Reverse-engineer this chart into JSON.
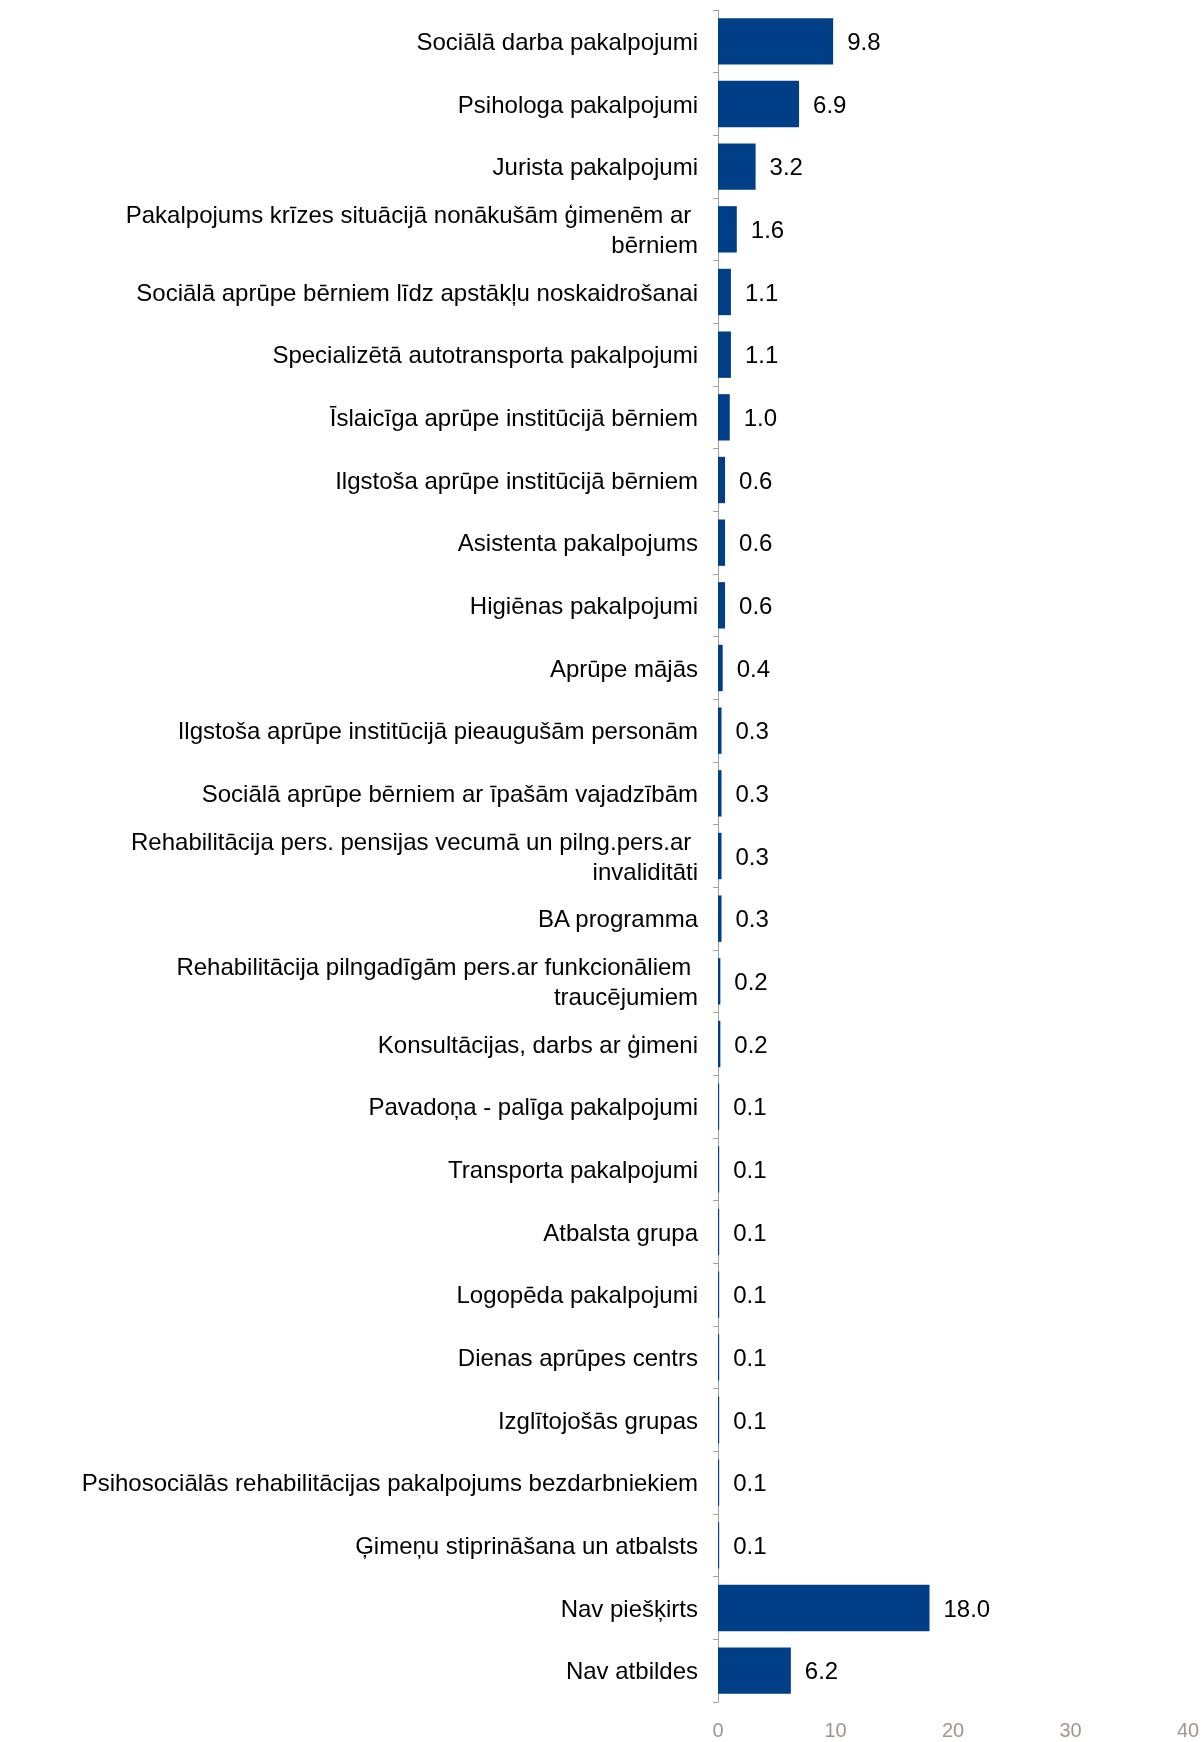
{
  "chart_data": {
    "type": "bar",
    "orientation": "horizontal",
    "categories": [
      "Sociālā darba pakalpojumi",
      "Psihologa pakalpojumi",
      "Jurista pakalpojumi",
      "Pakalpojums krīzes situācijā nonākušām ģimenēm ar bērniem",
      "Sociālā aprūpe bērniem līdz apstākļu noskaidrošanai",
      "Specializētā autotransporta pakalpojumi",
      "Īslaicīga aprūpe institūcijā bērniem",
      "Ilgstoša aprūpe institūcijā bērniem",
      "Asistenta pakalpojums",
      "Higiēnas pakalpojumi",
      "Aprūpe mājās",
      "Ilgstoša aprūpe institūcijā pieaugušām personām",
      "Sociālā aprūpe bērniem ar īpašām vajadzībām",
      "Rehabilitācija pers. pensijas vecumā un pilng.pers.ar invaliditāti",
      "BA programma",
      "Rehabilitācija pilngadīgām pers.ar funkcionāliem traucējumiem",
      "Konsultācijas, darbs ar ģimeni",
      "Pavadoņa - palīga pakalpojumi",
      "Transporta pakalpojumi",
      "Atbalsta grupa",
      "Logopēda pakalpojumi",
      "Dienas aprūpes centrs",
      "Izglītojošās grupas",
      "Psihosociālās rehabilitācijas pakalpojums bezdarbniekiem",
      "Ģimeņu stiprināšana un atbalsts",
      "Nav piešķirts",
      "Nav atbildes"
    ],
    "values": [
      9.8,
      6.9,
      3.2,
      1.6,
      1.1,
      1.1,
      1.0,
      0.6,
      0.6,
      0.6,
      0.4,
      0.3,
      0.3,
      0.3,
      0.3,
      0.2,
      0.2,
      0.1,
      0.1,
      0.1,
      0.1,
      0.1,
      0.1,
      0.1,
      0.1,
      18.0,
      6.2
    ],
    "value_labels": [
      "9.8",
      "6.9",
      "3.2",
      "1.6",
      "1.1",
      "1.1",
      "1.0",
      "0.6",
      "0.6",
      "0.6",
      "0.4",
      "0.3",
      "0.3",
      "0.3",
      "0.3",
      "0.2",
      "0.2",
      "0.1",
      "0.1",
      "0.1",
      "0.1",
      "0.1",
      "0.1",
      "0.1",
      "0.1",
      "18.0",
      "6.2"
    ],
    "color": "#003f87",
    "xlim": [
      0,
      40
    ],
    "xticks": [
      0,
      10,
      20,
      30,
      40
    ]
  }
}
